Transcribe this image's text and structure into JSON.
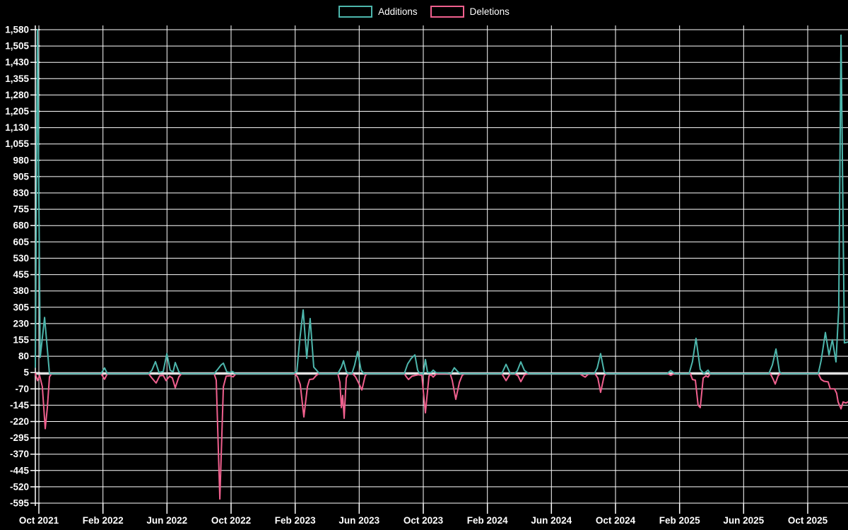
{
  "chart_data": {
    "type": "line",
    "title": "",
    "legend_position": "top-center",
    "legend": [
      {
        "label": "Additions",
        "color": "#4db6ac"
      },
      {
        "label": "Deletions",
        "color": "#f0608e"
      }
    ],
    "colors": {
      "background": "#000000",
      "grid": "#ffffff",
      "baseline": "#e0e0e0",
      "text": "#ffffff",
      "additions": "#4db6ac",
      "deletions": "#f0608e"
    },
    "grid": true,
    "x_axis": {
      "unit": "months since Oct 2021",
      "tick_labels": [
        "Oct 2021",
        "Feb 2022",
        "Jun 2022",
        "Oct 2022",
        "Feb 2023",
        "Jun 2023",
        "Oct 2023",
        "Feb 2024",
        "Jun 2024",
        "Oct 2024",
        "Feb 2025",
        "Jun 2025",
        "Oct 2025"
      ]
    },
    "y_axis": {
      "min": -595,
      "max": 1580,
      "tick_step": 75,
      "ticks": [
        1580,
        1505,
        1430,
        1355,
        1280,
        1205,
        1130,
        1055,
        980,
        905,
        830,
        755,
        680,
        605,
        530,
        455,
        380,
        305,
        230,
        155,
        80,
        5,
        -70,
        -145,
        -220,
        -295,
        -370,
        -445,
        -520,
        -595
      ]
    },
    "series": [
      {
        "name": "Deletions",
        "color": "#f0608e",
        "points": [
          [
            0,
            0
          ],
          [
            0.13,
            -32
          ],
          [
            0.26,
            -8
          ],
          [
            0.43,
            -60
          ],
          [
            0.61,
            -253
          ],
          [
            0.74,
            -156
          ],
          [
            0.87,
            -15
          ],
          [
            1,
            0
          ],
          [
            4.04,
            0
          ],
          [
            4.26,
            -26
          ],
          [
            4.43,
            0
          ],
          [
            6.96,
            0
          ],
          [
            7.17,
            -20
          ],
          [
            7.43,
            -43
          ],
          [
            7.65,
            -10
          ],
          [
            7.87,
            -8
          ],
          [
            8.04,
            -32
          ],
          [
            8.26,
            -12
          ],
          [
            8.43,
            -20
          ],
          [
            8.61,
            -65
          ],
          [
            8.83,
            -15
          ],
          [
            9,
            0
          ],
          [
            11,
            0
          ],
          [
            11.13,
            -30
          ],
          [
            11.35,
            -576
          ],
          [
            11.57,
            -60
          ],
          [
            11.74,
            -12
          ],
          [
            12,
            -10
          ],
          [
            12.17,
            -15
          ],
          [
            12.35,
            0
          ],
          [
            15.96,
            0
          ],
          [
            16.13,
            -15
          ],
          [
            16.3,
            -50
          ],
          [
            16.52,
            -199
          ],
          [
            16.74,
            -60
          ],
          [
            16.87,
            -27
          ],
          [
            17.09,
            -25
          ],
          [
            17.26,
            -10
          ],
          [
            17.43,
            0
          ],
          [
            18.61,
            0
          ],
          [
            18.74,
            -40
          ],
          [
            18.83,
            -156
          ],
          [
            18.91,
            -100
          ],
          [
            19,
            -205
          ],
          [
            19.13,
            -20
          ],
          [
            19.26,
            0
          ],
          [
            19.52,
            0
          ],
          [
            19.7,
            -15
          ],
          [
            19.87,
            -40
          ],
          [
            20.09,
            -75
          ],
          [
            20.3,
            -8
          ],
          [
            20.43,
            0
          ],
          [
            22.7,
            0
          ],
          [
            22.83,
            -15
          ],
          [
            22.96,
            -27
          ],
          [
            23.17,
            -12
          ],
          [
            23.39,
            -8
          ],
          [
            23.57,
            -5
          ],
          [
            23.78,
            -8
          ],
          [
            24,
            -180
          ],
          [
            24.22,
            -10
          ],
          [
            24.35,
            -5
          ],
          [
            24.48,
            -16
          ],
          [
            24.65,
            -3
          ],
          [
            24.78,
            0
          ],
          [
            25.52,
            0
          ],
          [
            25.65,
            -30
          ],
          [
            25.87,
            -118
          ],
          [
            26.09,
            -40
          ],
          [
            26.26,
            -8
          ],
          [
            26.43,
            0
          ],
          [
            28.7,
            0
          ],
          [
            28.96,
            -32
          ],
          [
            29.22,
            0
          ],
          [
            29.48,
            0
          ],
          [
            29.7,
            -10
          ],
          [
            29.87,
            -37
          ],
          [
            30.09,
            -6
          ],
          [
            30.3,
            0
          ],
          [
            33.48,
            0
          ],
          [
            33.65,
            -8
          ],
          [
            33.83,
            -16
          ],
          [
            34,
            -4
          ],
          [
            34.17,
            0
          ],
          [
            34.43,
            0
          ],
          [
            34.61,
            -20
          ],
          [
            34.78,
            -86
          ],
          [
            35,
            -10
          ],
          [
            35.13,
            0
          ],
          [
            38.91,
            0
          ],
          [
            39.09,
            -8
          ],
          [
            39.3,
            0
          ],
          [
            40.3,
            0
          ],
          [
            40.43,
            -27
          ],
          [
            40.61,
            -30
          ],
          [
            40.78,
            -145
          ],
          [
            40.91,
            -156
          ],
          [
            41.09,
            -20
          ],
          [
            41.26,
            -10
          ],
          [
            41.39,
            -16
          ],
          [
            41.52,
            0
          ],
          [
            45.22,
            0
          ],
          [
            45.39,
            -25
          ],
          [
            45.52,
            -48
          ],
          [
            45.7,
            -10
          ],
          [
            45.83,
            0
          ],
          [
            48.17,
            0
          ],
          [
            48.35,
            -27
          ],
          [
            48.52,
            -35
          ],
          [
            48.78,
            -38
          ],
          [
            48.91,
            -70
          ],
          [
            49.17,
            -70
          ],
          [
            49.3,
            -90
          ],
          [
            49.39,
            -130
          ],
          [
            49.57,
            -162
          ],
          [
            49.7,
            -130
          ],
          [
            49.87,
            -135
          ],
          [
            50,
            -130
          ]
        ]
      },
      {
        "name": "Additions",
        "color": "#4db6ac",
        "points": [
          [
            0,
            30
          ],
          [
            0.13,
            1580
          ],
          [
            0.3,
            75
          ],
          [
            0.57,
            258
          ],
          [
            0.87,
            0
          ],
          [
            4.04,
            0
          ],
          [
            4.26,
            26
          ],
          [
            4.43,
            0
          ],
          [
            6.96,
            0
          ],
          [
            7.17,
            15
          ],
          [
            7.39,
            55
          ],
          [
            7.61,
            5
          ],
          [
            7.87,
            10
          ],
          [
            8.09,
            92
          ],
          [
            8.3,
            15
          ],
          [
            8.48,
            8
          ],
          [
            8.61,
            51
          ],
          [
            8.83,
            8
          ],
          [
            9,
            0
          ],
          [
            11,
            0
          ],
          [
            11.22,
            20
          ],
          [
            11.43,
            40
          ],
          [
            11.57,
            48
          ],
          [
            11.78,
            8
          ],
          [
            11.96,
            5
          ],
          [
            12.13,
            10
          ],
          [
            12.3,
            0
          ],
          [
            15.87,
            0
          ],
          [
            16.09,
            10
          ],
          [
            16.26,
            150
          ],
          [
            16.48,
            293
          ],
          [
            16.7,
            70
          ],
          [
            16.91,
            253
          ],
          [
            17.13,
            30
          ],
          [
            17.3,
            16
          ],
          [
            17.48,
            0
          ],
          [
            18.61,
            0
          ],
          [
            18.83,
            30
          ],
          [
            18.96,
            59
          ],
          [
            19.13,
            10
          ],
          [
            19.26,
            0
          ],
          [
            19.48,
            0
          ],
          [
            19.65,
            40
          ],
          [
            19.83,
            102
          ],
          [
            20.04,
            16
          ],
          [
            20.22,
            0
          ],
          [
            22.7,
            0
          ],
          [
            22.91,
            45
          ],
          [
            23.13,
            70
          ],
          [
            23.35,
            86
          ],
          [
            23.52,
            16
          ],
          [
            23.65,
            0
          ],
          [
            23.87,
            0
          ],
          [
            24,
            65
          ],
          [
            24.13,
            5
          ],
          [
            24.35,
            5
          ],
          [
            24.48,
            16
          ],
          [
            24.65,
            5
          ],
          [
            24.78,
            3
          ],
          [
            25.3,
            3
          ],
          [
            25.48,
            0
          ],
          [
            25.57,
            0
          ],
          [
            25.78,
            27
          ],
          [
            26,
            8
          ],
          [
            26.17,
            0
          ],
          [
            28.7,
            0
          ],
          [
            28.96,
            43
          ],
          [
            29.22,
            0
          ],
          [
            29.48,
            0
          ],
          [
            29.65,
            12
          ],
          [
            29.87,
            54
          ],
          [
            30.09,
            15
          ],
          [
            30.35,
            0
          ],
          [
            33.57,
            0
          ],
          [
            33.78,
            2
          ],
          [
            34.04,
            0
          ],
          [
            34.39,
            0
          ],
          [
            34.57,
            25
          ],
          [
            34.78,
            92
          ],
          [
            35,
            8
          ],
          [
            35.13,
            0
          ],
          [
            38.87,
            0
          ],
          [
            39.09,
            14
          ],
          [
            39.35,
            0
          ],
          [
            40.22,
            0
          ],
          [
            40.43,
            55
          ],
          [
            40.65,
            162
          ],
          [
            40.91,
            20
          ],
          [
            41.13,
            0
          ],
          [
            41.26,
            8
          ],
          [
            41.39,
            16
          ],
          [
            41.52,
            0
          ],
          [
            45.13,
            0
          ],
          [
            45.35,
            40
          ],
          [
            45.57,
            113
          ],
          [
            45.78,
            10
          ],
          [
            45.91,
            0
          ],
          [
            48.17,
            0
          ],
          [
            48.35,
            60
          ],
          [
            48.61,
            189
          ],
          [
            48.83,
            86
          ],
          [
            49.04,
            156
          ],
          [
            49.26,
            54
          ],
          [
            49.43,
            300
          ],
          [
            49.57,
            1555
          ],
          [
            49.78,
            141
          ],
          [
            50,
            145
          ]
        ]
      }
    ]
  }
}
